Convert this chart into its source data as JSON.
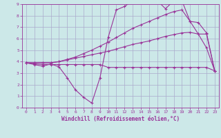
{
  "bg_color": "#cce8e8",
  "grid_color": "#aaaacc",
  "line_color": "#993399",
  "xlabel": "Windchill (Refroidissement éolien,°C)",
  "xlim": [
    -0.5,
    23.5
  ],
  "ylim": [
    0,
    9
  ],
  "xticks": [
    0,
    1,
    2,
    3,
    4,
    5,
    6,
    7,
    8,
    9,
    10,
    11,
    12,
    13,
    14,
    15,
    16,
    17,
    18,
    19,
    20,
    21,
    22,
    23
  ],
  "yticks": [
    0,
    1,
    2,
    3,
    4,
    5,
    6,
    7,
    8,
    9
  ],
  "line_flat_x": [
    0,
    1,
    2,
    3,
    4,
    5,
    6,
    7,
    8,
    9,
    10,
    11,
    12,
    13,
    14,
    15,
    16,
    17,
    18,
    19,
    20,
    21,
    22,
    23
  ],
  "line_flat_y": [
    3.9,
    3.8,
    3.75,
    3.75,
    3.75,
    3.75,
    3.75,
    3.75,
    3.75,
    3.75,
    3.5,
    3.5,
    3.5,
    3.5,
    3.5,
    3.5,
    3.5,
    3.5,
    3.5,
    3.5,
    3.5,
    3.5,
    3.5,
    3.2
  ],
  "line_low_x": [
    0,
    1,
    2,
    3,
    4,
    5,
    6,
    7,
    8,
    9,
    10,
    11,
    12,
    13,
    14,
    15,
    16,
    17,
    18,
    19,
    20,
    21,
    22,
    23
  ],
  "line_low_y": [
    3.9,
    3.9,
    3.9,
    3.9,
    4.0,
    4.15,
    4.3,
    4.45,
    4.6,
    4.75,
    4.9,
    5.1,
    5.3,
    5.5,
    5.65,
    5.8,
    6.0,
    6.2,
    6.35,
    6.5,
    6.55,
    6.4,
    5.2,
    3.2
  ],
  "line_high_x": [
    0,
    1,
    2,
    3,
    4,
    5,
    6,
    7,
    8,
    9,
    10,
    11,
    12,
    13,
    14,
    15,
    16,
    17,
    18,
    19,
    20,
    21,
    22,
    23
  ],
  "line_high_y": [
    3.9,
    3.9,
    3.9,
    3.9,
    4.0,
    4.2,
    4.4,
    4.7,
    5.0,
    5.35,
    5.7,
    6.1,
    6.5,
    6.9,
    7.2,
    7.5,
    7.8,
    8.1,
    8.35,
    8.5,
    7.5,
    7.4,
    6.5,
    3.2
  ],
  "line_wild_x": [
    0,
    1,
    2,
    3,
    4,
    5,
    6,
    7,
    8,
    9,
    10,
    11,
    12,
    13,
    14,
    15,
    16,
    17,
    18,
    19,
    20,
    21,
    22,
    23
  ],
  "line_wild_y": [
    3.9,
    3.75,
    3.6,
    3.8,
    3.55,
    2.6,
    1.55,
    0.9,
    0.4,
    2.6,
    6.1,
    8.5,
    8.8,
    9.3,
    9.3,
    9.3,
    9.3,
    8.6,
    9.3,
    9.3,
    7.5,
    6.4,
    6.4,
    3.2
  ]
}
